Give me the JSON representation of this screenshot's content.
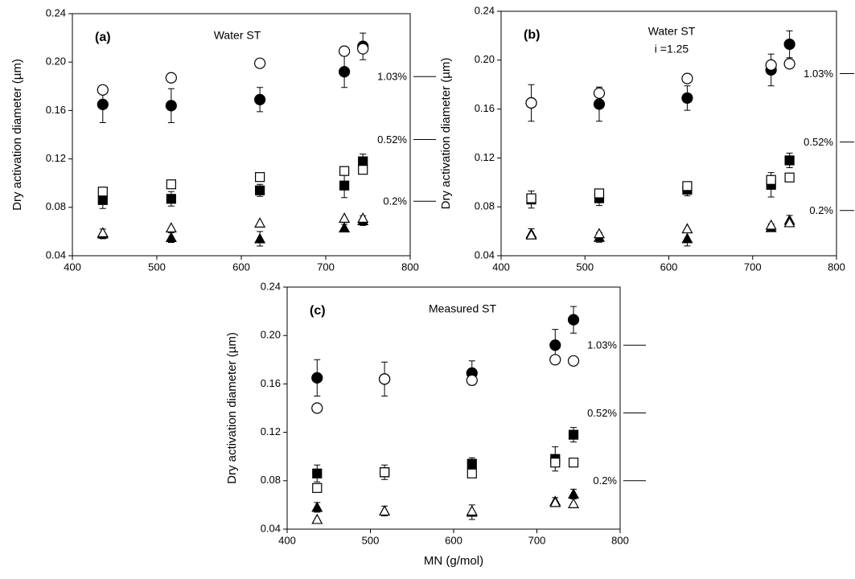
{
  "chart_data": [
    {
      "type": "scatter",
      "panel": "(a)",
      "title": "Water ST",
      "ylabel": "Dry activation diameter (µm)",
      "x": [
        436,
        517,
        622,
        722,
        744
      ],
      "xlim": [
        400,
        800
      ],
      "xticks": [
        400,
        500,
        600,
        700,
        800
      ],
      "ylim": [
        0.04,
        0.24
      ],
      "yticks": [
        0.04,
        0.08,
        0.12,
        0.16,
        {
          "value": 0.2,
          "label": "0.20"
        },
        0.24
      ],
      "series": [
        {
          "marker": "circle",
          "filled": true,
          "color": "#000000",
          "values": [
            0.165,
            0.164,
            0.169,
            0.192,
            0.213
          ],
          "errors": [
            0.015,
            0.014,
            0.01,
            0.013,
            0.011
          ]
        },
        {
          "marker": "square",
          "filled": true,
          "color": "#000000",
          "values": [
            0.086,
            0.087,
            0.094,
            0.098,
            0.118
          ],
          "errors": [
            0.007,
            0.006,
            0.005,
            0.01,
            0.006
          ]
        },
        {
          "marker": "triangle",
          "filled": true,
          "color": "#000000",
          "values": [
            0.058,
            0.055,
            0.054,
            0.063,
            0.069
          ],
          "errors": [
            0.004,
            0.004,
            0.006,
            0.003,
            0.004
          ]
        },
        {
          "marker": "circle",
          "filled": false,
          "color": "#000000",
          "values": [
            0.177,
            0.187,
            0.199,
            0.209,
            0.211
          ]
        },
        {
          "marker": "square",
          "filled": false,
          "color": "#000000",
          "values": [
            0.093,
            0.099,
            0.105,
            0.11,
            0.111
          ]
        },
        {
          "marker": "triangle",
          "filled": false,
          "color": "#000000",
          "values": [
            0.059,
            0.063,
            0.067,
            0.071,
            0.071
          ]
        }
      ],
      "annotations": [
        {
          "text": "1.03%",
          "y": 0.188
        },
        {
          "text": "0.52%",
          "y": 0.136
        },
        {
          "text": "0.2%",
          "y": 0.085
        }
      ]
    },
    {
      "type": "scatter",
      "panel": "(b)",
      "title": "Water  ST",
      "subtitle": "i =1.25",
      "ylabel": "Dry activation diameter (µm)",
      "x": [
        436,
        517,
        622,
        722,
        744
      ],
      "xlim": [
        400,
        800
      ],
      "xticks": [
        400,
        500,
        600,
        700,
        800
      ],
      "ylim": [
        0.04,
        0.24
      ],
      "yticks": [
        0.04,
        0.08,
        0.12,
        0.16,
        {
          "value": 0.2,
          "label": "0.20"
        },
        0.24
      ],
      "series": [
        {
          "marker": "circle",
          "filled": true,
          "color": "#000000",
          "values": [
            0.165,
            0.164,
            0.169,
            0.192,
            0.213
          ],
          "errors": [
            0.015,
            0.014,
            0.01,
            0.013,
            0.011
          ]
        },
        {
          "marker": "square",
          "filled": true,
          "color": "#000000",
          "values": [
            0.086,
            0.087,
            0.094,
            0.098,
            0.118
          ],
          "errors": [
            0.007,
            0.006,
            0.005,
            0.01,
            0.006
          ]
        },
        {
          "marker": "triangle",
          "filled": true,
          "color": "#000000",
          "values": [
            0.058,
            0.055,
            0.054,
            0.063,
            0.069
          ],
          "errors": [
            0.004,
            0.004,
            0.006,
            0.003,
            0.004
          ]
        },
        {
          "marker": "circle",
          "filled": false,
          "color": "#000000",
          "values": [
            0.165,
            0.173,
            0.185,
            0.196,
            0.197
          ]
        },
        {
          "marker": "square",
          "filled": false,
          "color": "#000000",
          "values": [
            0.087,
            0.091,
            0.097,
            0.102,
            0.104
          ]
        },
        {
          "marker": "triangle",
          "filled": false,
          "color": "#000000",
          "values": [
            0.057,
            0.058,
            0.062,
            0.065,
            0.067
          ]
        }
      ],
      "annotations": [
        {
          "text": "1.03%",
          "y": 0.189
        },
        {
          "text": "0.52%",
          "y": 0.133
        },
        {
          "text": "0.2%",
          "y": 0.077
        }
      ]
    },
    {
      "type": "scatter",
      "panel": "(c)",
      "title": "Measured ST",
      "ylabel": "Dry activation diameter (µm)",
      "xlabel": "MN (g/mol)",
      "x": [
        436,
        517,
        622,
        722,
        744
      ],
      "xlim": [
        400,
        800
      ],
      "xticks": [
        400,
        500,
        600,
        700,
        800
      ],
      "ylim": [
        0.04,
        0.24
      ],
      "yticks": [
        0.04,
        0.08,
        0.12,
        0.16,
        {
          "value": 0.2,
          "label": "0.20"
        },
        0.24
      ],
      "series": [
        {
          "marker": "circle",
          "filled": true,
          "color": "#000000",
          "values": [
            0.165,
            0.164,
            0.169,
            0.192,
            0.213
          ],
          "errors": [
            0.015,
            0.014,
            0.01,
            0.013,
            0.011
          ]
        },
        {
          "marker": "square",
          "filled": true,
          "color": "#000000",
          "values": [
            0.086,
            0.087,
            0.094,
            0.098,
            0.118
          ],
          "errors": [
            0.007,
            0.006,
            0.005,
            0.01,
            0.006
          ]
        },
        {
          "marker": "triangle",
          "filled": true,
          "color": "#000000",
          "values": [
            0.058,
            0.055,
            0.054,
            0.063,
            0.069
          ],
          "errors": [
            0.004,
            0.004,
            0.006,
            0.003,
            0.004
          ]
        },
        {
          "marker": "circle",
          "filled": false,
          "color": "#000000",
          "values": [
            0.14,
            0.164,
            0.163,
            0.18,
            0.179
          ]
        },
        {
          "marker": "square",
          "filled": false,
          "color": "#000000",
          "values": [
            0.074,
            0.087,
            0.086,
            0.095,
            0.095
          ]
        },
        {
          "marker": "triangle",
          "filled": false,
          "color": "#000000",
          "values": [
            0.048,
            0.055,
            0.055,
            0.062,
            0.061
          ]
        }
      ],
      "annotations": [
        {
          "text": "1.03%",
          "y": 0.192
        },
        {
          "text": "0.52%",
          "y": 0.136
        },
        {
          "text": "0.2%",
          "y": 0.08
        }
      ]
    }
  ]
}
